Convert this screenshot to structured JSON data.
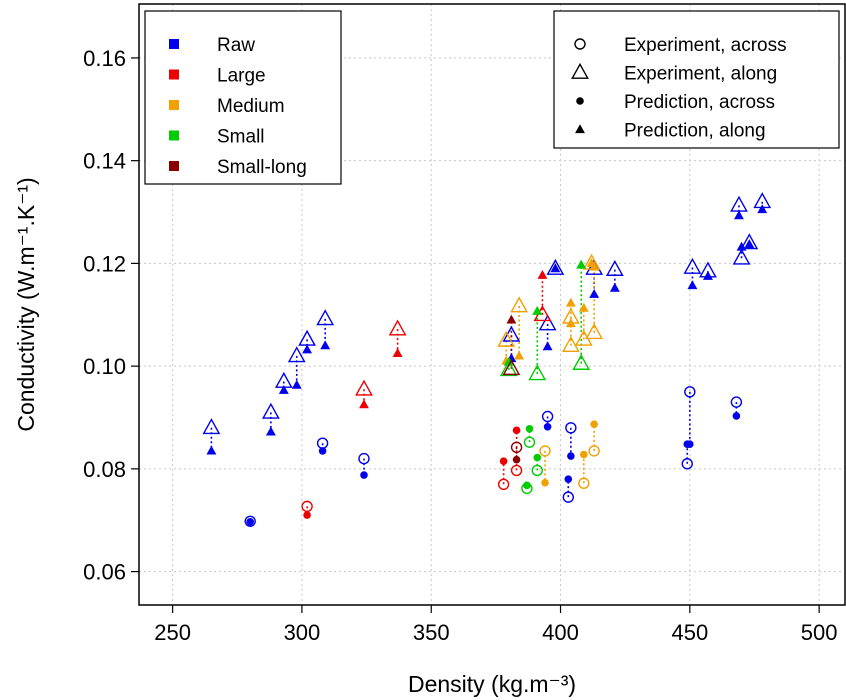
{
  "chart_data": {
    "type": "scatter",
    "xlabel": "Density (kg.m⁻³)",
    "ylabel": "Conductivity (W.m⁻¹.K⁻¹)",
    "xlim": [
      237,
      510
    ],
    "ylim": [
      0.0535,
      0.1705
    ],
    "x_ticks": [
      250,
      300,
      350,
      400,
      450,
      500
    ],
    "y_ticks": [
      0.06,
      0.08,
      0.1,
      0.12,
      0.14,
      0.16
    ],
    "x_tick_labels": [
      "250",
      "300",
      "350",
      "400",
      "450",
      "500"
    ],
    "y_tick_labels": [
      "0.06",
      "0.08",
      "0.10",
      "0.12",
      "0.14",
      "0.16"
    ],
    "grid": true,
    "grid_style": "dotted",
    "legend_series": {
      "placement": "top-left",
      "entries": [
        {
          "label": "Raw",
          "color": "#0000ee"
        },
        {
          "label": "Large",
          "color": "#ee0000"
        },
        {
          "label": "Medium",
          "color": "#f0a000"
        },
        {
          "label": "Small",
          "color": "#00cc00"
        },
        {
          "label": "Small-long",
          "color": "#8b0000"
        }
      ]
    },
    "legend_markers": {
      "placement": "top-right",
      "entries": [
        {
          "label": "Experiment, across",
          "marker": "open-circle"
        },
        {
          "label": "Experiment, along",
          "marker": "open-triangle"
        },
        {
          "label": "Prediction, across",
          "marker": "filled-circle"
        },
        {
          "label": "Prediction, along",
          "marker": "filled-triangle"
        }
      ]
    },
    "series": [
      {
        "name": "Raw",
        "color": "#0000ee",
        "across": [
          {
            "x": 280,
            "exp": 0.0698,
            "pred": 0.0697
          },
          {
            "x": 308,
            "exp": 0.085,
            "pred": 0.0835
          },
          {
            "x": 324,
            "exp": 0.082,
            "pred": 0.0788
          },
          {
            "x": 395,
            "exp": 0.0902,
            "pred": 0.0882
          },
          {
            "x": 403,
            "exp": 0.0745,
            "pred": 0.078
          },
          {
            "x": 404,
            "exp": 0.088,
            "pred": 0.0825
          },
          {
            "x": 449,
            "exp": 0.081,
            "pred": 0.0848
          },
          {
            "x": 450,
            "exp": 0.095,
            "pred": 0.0848
          },
          {
            "x": 468,
            "exp": 0.093,
            "pred": 0.0903
          }
        ],
        "along": [
          {
            "x": 265,
            "exp": 0.088,
            "pred": 0.0835
          },
          {
            "x": 288,
            "exp": 0.091,
            "pred": 0.0872
          },
          {
            "x": 293,
            "exp": 0.097,
            "pred": 0.0953
          },
          {
            "x": 298,
            "exp": 0.102,
            "pred": 0.0963
          },
          {
            "x": 302,
            "exp": 0.1052,
            "pred": 0.1032
          },
          {
            "x": 309,
            "exp": 0.1092,
            "pred": 0.104
          },
          {
            "x": 381,
            "exp": 0.106,
            "pred": 0.1015
          },
          {
            "x": 395,
            "exp": 0.1082,
            "pred": 0.1038
          },
          {
            "x": 398,
            "exp": 0.119,
            "pred": 0.119
          },
          {
            "x": 413,
            "exp": 0.119,
            "pred": 0.114
          },
          {
            "x": 421,
            "exp": 0.1188,
            "pred": 0.1152
          },
          {
            "x": 451,
            "exp": 0.1192,
            "pred": 0.1157
          },
          {
            "x": 457,
            "exp": 0.1185,
            "pred": 0.1175
          },
          {
            "x": 469,
            "exp": 0.1313,
            "pred": 0.1293
          },
          {
            "x": 470,
            "exp": 0.121,
            "pred": 0.1232
          },
          {
            "x": 473,
            "exp": 0.124,
            "pred": 0.1237
          },
          {
            "x": 478,
            "exp": 0.132,
            "pred": 0.1305
          }
        ]
      },
      {
        "name": "Large",
        "color": "#ee0000",
        "across": [
          {
            "x": 302,
            "exp": 0.0727,
            "pred": 0.071
          },
          {
            "x": 378,
            "exp": 0.077,
            "pred": 0.0815
          },
          {
            "x": 383,
            "exp": 0.0797,
            "pred": 0.0875
          }
        ],
        "along": [
          {
            "x": 324,
            "exp": 0.0955,
            "pred": 0.0925
          },
          {
            "x": 337,
            "exp": 0.1072,
            "pred": 0.1025
          },
          {
            "x": 393,
            "exp": 0.11,
            "pred": 0.1177
          }
        ]
      },
      {
        "name": "Medium",
        "color": "#f0a000",
        "across": [
          {
            "x": 394,
            "exp": 0.0835,
            "pred": 0.0773
          },
          {
            "x": 409,
            "exp": 0.0772,
            "pred": 0.0828
          },
          {
            "x": 413,
            "exp": 0.0835,
            "pred": 0.0887
          }
        ],
        "along": [
          {
            "x": 379,
            "exp": 0.105,
            "pred": 0.101
          },
          {
            "x": 384,
            "exp": 0.1117,
            "pred": 0.102
          },
          {
            "x": 404,
            "exp": 0.104,
            "pred": 0.1123
          },
          {
            "x": 404,
            "exp": 0.1095,
            "pred": 0.1083
          },
          {
            "x": 409,
            "exp": 0.1052,
            "pred": 0.1113
          },
          {
            "x": 412,
            "exp": 0.12,
            "pred": 0.12
          },
          {
            "x": 413,
            "exp": 0.1065,
            "pred": 0.1193
          }
        ]
      },
      {
        "name": "Small",
        "color": "#00cc00",
        "across": [
          {
            "x": 387,
            "exp": 0.0762,
            "pred": 0.0768
          },
          {
            "x": 388,
            "exp": 0.0852,
            "pred": 0.0878
          },
          {
            "x": 391,
            "exp": 0.0797,
            "pred": 0.0822
          }
        ],
        "along": [
          {
            "x": 380,
            "exp": 0.0993,
            "pred": 0.1008
          },
          {
            "x": 391,
            "exp": 0.0985,
            "pred": 0.1107
          },
          {
            "x": 408,
            "exp": 0.1005,
            "pred": 0.1197
          }
        ]
      },
      {
        "name": "Small-long",
        "color": "#8b0000",
        "across": [
          {
            "x": 383,
            "exp": 0.0842,
            "pred": 0.0818
          }
        ],
        "along": [
          {
            "x": 381,
            "exp": 0.0995,
            "pred": 0.109
          }
        ]
      }
    ]
  }
}
